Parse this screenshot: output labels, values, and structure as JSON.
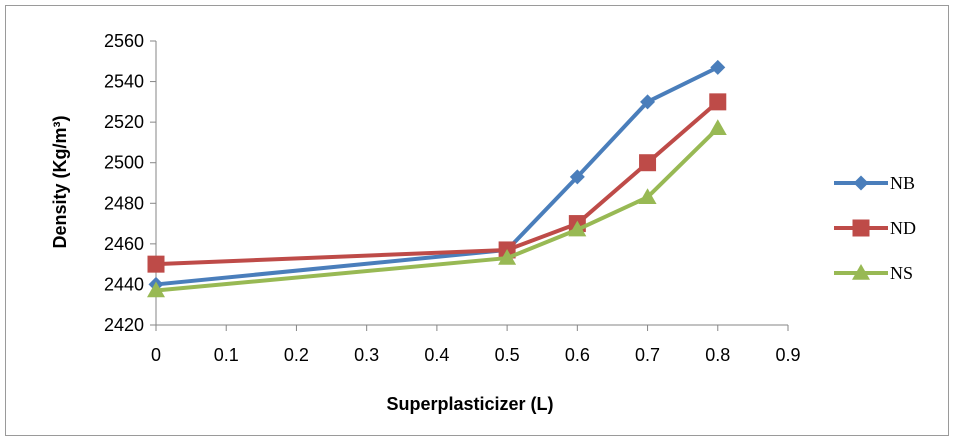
{
  "chart_data": {
    "type": "line",
    "title": "",
    "xlabel": "Superplasticizer (L)",
    "ylabel": "Density (Kg/m³)",
    "xlim": [
      0,
      0.9
    ],
    "ylim": [
      2420,
      2560
    ],
    "x_ticks": [
      "0",
      "0.1",
      "0.2",
      "0.3",
      "0.4",
      "0.5",
      "0.6",
      "0.7",
      "0.8",
      "0.9"
    ],
    "y_ticks": [
      "2420",
      "2440",
      "2460",
      "2480",
      "2500",
      "2520",
      "2540",
      "2560"
    ],
    "grid": false,
    "legend_position": "right",
    "x": [
      0,
      0.5,
      0.6,
      0.7,
      0.8
    ],
    "series": [
      {
        "name": "NB",
        "color": "#4a7ebb",
        "marker": "diamond",
        "values": [
          2440,
          2457,
          2493,
          2530,
          2547
        ]
      },
      {
        "name": "ND",
        "color": "#be4b48",
        "marker": "square",
        "values": [
          2450,
          2457,
          2470,
          2500,
          2530
        ]
      },
      {
        "name": "NS",
        "color": "#98b954",
        "marker": "triangle",
        "values": [
          2437,
          2453,
          2467,
          2483,
          2517
        ]
      }
    ]
  }
}
